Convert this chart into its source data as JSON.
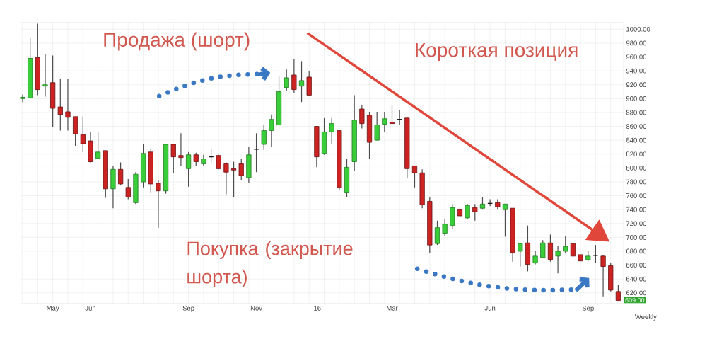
{
  "chart_data": {
    "type": "candlestick",
    "categories": [
      null,
      null,
      null,
      null,
      "May",
      null,
      null,
      null,
      null,
      "Jun",
      null,
      null,
      null,
      null,
      null,
      null,
      null,
      null,
      null,
      null,
      null,
      null,
      "Sep",
      null,
      null,
      null,
      null,
      null,
      null,
      null,
      null,
      "Nov",
      null,
      null,
      null,
      null,
      null,
      null,
      null,
      "'16",
      null,
      null,
      null,
      null,
      null,
      null,
      null,
      null,
      null,
      "Mar",
      null,
      null,
      null,
      null,
      null,
      null,
      null,
      null,
      null,
      null,
      null,
      null,
      "Jun",
      null,
      null,
      null,
      null,
      null,
      null,
      null,
      null,
      null,
      null,
      null,
      null,
      "Sep",
      null,
      null,
      null,
      null
    ],
    "ohlc": [
      [
        900,
        906,
        895,
        902
      ],
      [
        901,
        987,
        900,
        958
      ],
      [
        959,
        1008,
        905,
        913
      ],
      [
        918,
        964,
        903,
        920
      ],
      [
        923,
        962,
        859,
        886
      ],
      [
        888,
        929,
        854,
        877
      ],
      [
        881,
        929,
        854,
        873
      ],
      [
        874,
        874,
        832,
        849
      ],
      [
        848,
        874,
        823,
        835
      ],
      [
        839,
        852,
        808,
        809
      ],
      [
        814,
        852,
        814,
        823
      ],
      [
        825,
        825,
        757,
        770
      ],
      [
        770,
        803,
        742,
        798
      ],
      [
        798,
        808,
        775,
        777
      ],
      [
        772,
        784,
        755,
        758
      ],
      [
        750,
        794,
        748,
        791
      ],
      [
        780,
        835,
        772,
        821
      ],
      [
        823,
        828,
        765,
        777
      ],
      [
        778,
        782,
        714,
        767
      ],
      [
        767,
        835,
        763,
        834
      ],
      [
        834,
        835,
        793,
        816
      ],
      [
        818,
        850,
        803,
        815
      ],
      [
        799,
        823,
        773,
        819
      ],
      [
        819,
        822,
        803,
        809
      ],
      [
        806,
        819,
        803,
        813
      ],
      [
        816,
        827,
        808,
        816
      ],
      [
        818,
        819,
        798,
        799
      ],
      [
        806,
        808,
        762,
        794
      ],
      [
        799,
        809,
        758,
        797
      ],
      [
        806,
        813,
        782,
        789
      ],
      [
        786,
        830,
        778,
        819
      ],
      [
        827,
        850,
        794,
        827
      ],
      [
        834,
        862,
        826,
        854
      ],
      [
        854,
        877,
        830,
        870
      ],
      [
        862,
        932,
        862,
        910
      ],
      [
        916,
        942,
        911,
        930
      ],
      [
        934,
        957,
        908,
        913
      ],
      [
        918,
        954,
        895,
        926
      ],
      [
        931,
        939,
        905,
        905
      ],
      [
        860,
        860,
        801,
        816
      ],
      [
        821,
        872,
        819,
        852
      ],
      [
        852,
        872,
        835,
        864
      ],
      [
        854,
        854,
        768,
        772
      ],
      [
        765,
        813,
        758,
        801
      ],
      [
        809,
        905,
        796,
        869
      ],
      [
        885,
        891,
        857,
        864
      ],
      [
        876,
        881,
        813,
        837
      ],
      [
        840,
        881,
        840,
        862
      ],
      [
        863,
        881,
        852,
        871
      ],
      [
        866,
        890,
        864,
        864
      ],
      [
        870,
        883,
        862,
        870
      ],
      [
        872,
        872,
        786,
        799
      ],
      [
        803,
        803,
        772,
        793
      ],
      [
        793,
        798,
        742,
        747
      ],
      [
        752,
        758,
        678,
        689
      ],
      [
        691,
        724,
        689,
        714
      ],
      [
        706,
        727,
        702,
        719
      ],
      [
        717,
        748,
        712,
        743
      ],
      [
        740,
        743,
        731,
        731
      ],
      [
        728,
        748,
        727,
        746
      ],
      [
        743,
        748,
        724,
        737
      ],
      [
        742,
        758,
        740,
        748
      ],
      [
        749,
        755,
        745,
        749
      ],
      [
        750,
        755,
        740,
        744
      ],
      [
        740,
        748,
        701,
        748
      ],
      [
        742,
        742,
        665,
        678
      ],
      [
        680,
        691,
        658,
        691
      ],
      [
        692,
        717,
        651,
        661
      ],
      [
        663,
        681,
        661,
        673
      ],
      [
        671,
        696,
        671,
        692
      ],
      [
        692,
        704,
        665,
        668
      ],
      [
        673,
        687,
        648,
        680
      ],
      [
        680,
        702,
        678,
        687
      ],
      [
        691,
        691,
        673,
        673
      ],
      [
        675,
        675,
        666,
        666
      ],
      [
        668,
        680,
        666,
        673
      ],
      [
        674,
        689,
        663,
        674
      ],
      [
        673,
        675,
        615,
        658
      ],
      [
        659,
        663,
        622,
        624
      ],
      [
        622,
        632,
        609,
        609
      ]
    ],
    "ylim": [
      605,
      1010
    ],
    "yticks": [
      {
        "value": 620,
        "label": "620.00"
      },
      {
        "value": 640,
        "label": "640.00"
      },
      {
        "value": 660,
        "label": "660.00"
      },
      {
        "value": 680,
        "label": "680.00"
      },
      {
        "value": 700,
        "label": "700.00"
      },
      {
        "value": 720,
        "label": "720.00"
      },
      {
        "value": 740,
        "label": "740.00"
      },
      {
        "value": 760,
        "label": "760.00"
      },
      {
        "value": 780,
        "label": "780.00"
      },
      {
        "value": 800,
        "label": "800.00"
      },
      {
        "value": 820,
        "label": "820.00"
      },
      {
        "value": 840,
        "label": "840.00"
      },
      {
        "value": 860,
        "label": "860.00"
      },
      {
        "value": 880,
        "label": "880.00"
      },
      {
        "value": 900,
        "label": "900.00"
      },
      {
        "value": 920,
        "label": "920.00"
      },
      {
        "value": 940,
        "label": "940.00"
      },
      {
        "value": 960,
        "label": "960.00"
      },
      {
        "value": 980,
        "label": "980.00"
      },
      {
        "value": 1000,
        "label": "1000.00"
      }
    ],
    "grid": true,
    "annotations": [
      "Продажа (шорт)",
      "Короткая позиция",
      "Покупка (закрытие шорта)",
      "Weekly",
      "609.00"
    ]
  }
}
